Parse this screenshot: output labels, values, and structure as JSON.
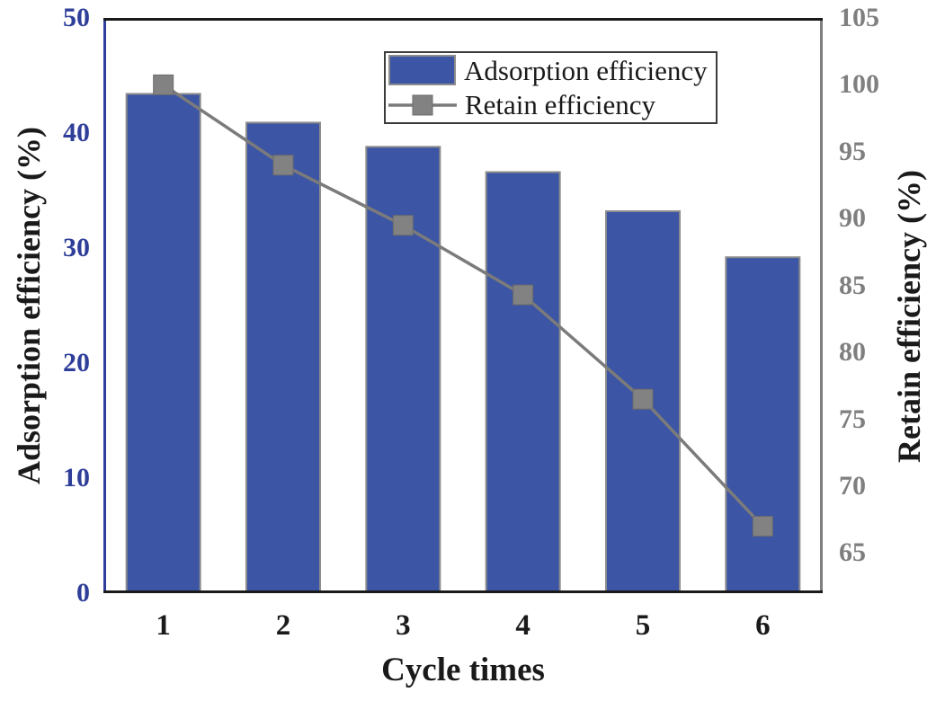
{
  "chart_data": {
    "type": "bar+line",
    "title": "",
    "categories": [
      "1",
      "2",
      "3",
      "4",
      "5",
      "6"
    ],
    "xlabel": "Cycle times",
    "frame_color": "#1a1a1a",
    "series": [
      {
        "name": "Adsorption efficiency",
        "type": "bar",
        "axis": "left",
        "values": [
          43.4,
          40.9,
          38.8,
          36.6,
          33.2,
          29.2
        ],
        "color": "#3c55a4",
        "edge_color": "#8c8c8c"
      },
      {
        "name": "Retain efficiency",
        "type": "line",
        "axis": "right",
        "values": [
          100,
          94,
          89.5,
          84.3,
          76.5,
          67
        ],
        "color": "#7b7b7b",
        "marker": "square",
        "marker_color": "#828282",
        "marker_edge_color": "#6b6b6b"
      }
    ],
    "left_axis": {
      "label": "Adsorption efficiency (%)",
      "ticks": [
        0,
        10,
        20,
        30,
        40,
        50
      ],
      "range": [
        0,
        50
      ],
      "color": "#2e3e99"
    },
    "right_axis": {
      "label": "Retain efficiency (%)",
      "ticks": [
        65,
        70,
        75,
        80,
        85,
        90,
        95,
        100,
        105
      ],
      "range": [
        62,
        105
      ],
      "color": "#7f7f7f",
      "spine_color": "#7f7f7f"
    },
    "legend": {
      "position": "top-center",
      "entries": [
        "Adsorption efficiency",
        "Retain efficiency"
      ]
    },
    "grid": false
  }
}
